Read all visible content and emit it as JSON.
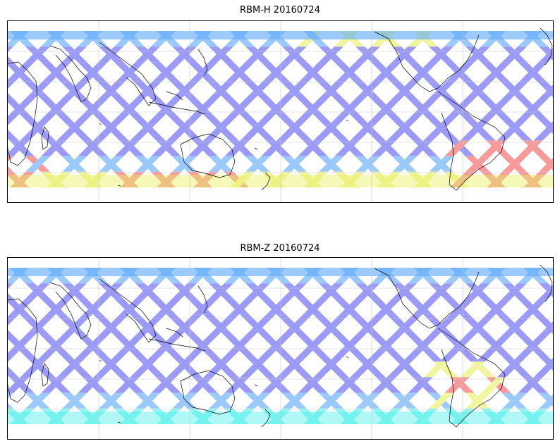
{
  "panels": [
    {
      "title": "RBM-H 20160724",
      "colormap": "jet",
      "alpha": 0.6
    },
    {
      "title": "RBM-Z 20160724",
      "colormap": "jet",
      "alpha": 0.6
    }
  ],
  "colors": {
    "low": "#5a5af0",
    "mid_low": "#5aa8f8",
    "mid": "#4ef0e8",
    "mid_high": "#e8f060",
    "high": "#f05a5a",
    "coastline": "#000000",
    "grid": "#c8c8c8"
  },
  "map": {
    "projection": "cylindrical",
    "gridlines": true,
    "coastlines": true
  }
}
